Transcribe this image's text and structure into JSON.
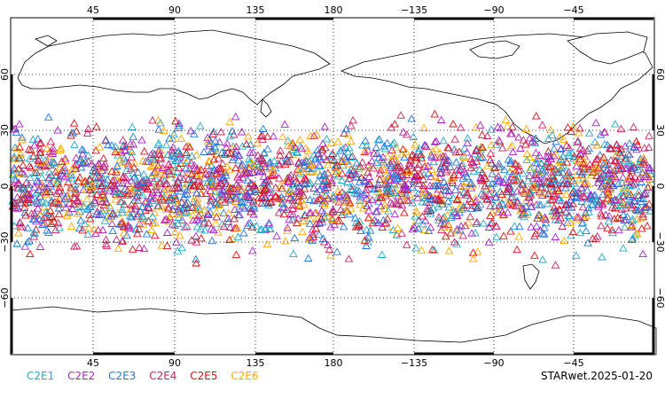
{
  "map": {
    "top_lon_labels": [
      "45",
      "90",
      "135",
      "180",
      "−135",
      "−90",
      "−45"
    ],
    "bottom_lon_labels": [
      "45",
      "90",
      "135",
      "180",
      "−135",
      "−90",
      "−45"
    ],
    "lat_labels": [
      "60",
      "30",
      "0",
      "−30",
      "−60"
    ],
    "grid": "dotted",
    "projection": "cylindrical-equidistant-centered-180E",
    "lat_range": [
      -90,
      90
    ],
    "lon_range": [
      0,
      360
    ],
    "observation_band_lat": [
      -45,
      45
    ],
    "marker_shape": "open-triangle"
  },
  "legend": [
    {
      "label": "C2E1",
      "color": "#22aacc"
    },
    {
      "label": "C2E2",
      "color": "#aa22cc"
    },
    {
      "label": "C2E3",
      "color": "#2277dd"
    },
    {
      "label": "C2E4",
      "color": "#cc2266"
    },
    {
      "label": "C2E5",
      "color": "#dd1111"
    },
    {
      "label": "C2E6",
      "color": "#ffaa00"
    }
  ],
  "stamp": "STARwet.2025-01-20"
}
